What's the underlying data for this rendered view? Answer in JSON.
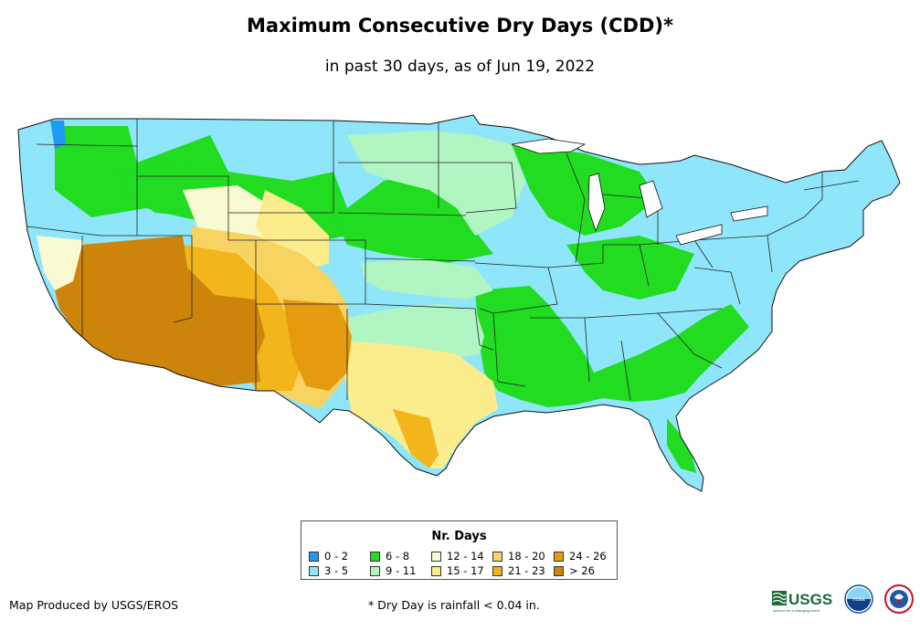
{
  "title": "Maximum Consecutive Dry Days (CDD)*",
  "subtitle": "in past 30 days, as of Jun 19, 2022",
  "legend": {
    "title": "Nr. Days",
    "items": [
      {
        "label": "0 - 2",
        "color": "#1e9bf0"
      },
      {
        "label": "3 - 5",
        "color": "#8fe6fa"
      },
      {
        "label": "6 - 8",
        "color": "#21dc21"
      },
      {
        "label": "9 - 11",
        "color": "#b1f5c2"
      },
      {
        "label": "12 - 14",
        "color": "#fafad2"
      },
      {
        "label": "15 - 17",
        "color": "#fbed8c"
      },
      {
        "label": "18 - 20",
        "color": "#f7d362"
      },
      {
        "label": "21 - 23",
        "color": "#f2b51b"
      },
      {
        "label": "24 - 26",
        "color": "#e69b0e"
      },
      {
        "label": "> 26",
        "color": "#cd840a"
      }
    ]
  },
  "credit": "Map Produced by USGS/EROS",
  "footnote": "* Dry Day is rainfall < 0.04 in.",
  "logos": {
    "usgs_text": "USGS",
    "usgs_tagline": "science for a changing world",
    "noaa_text": "noaa"
  }
}
